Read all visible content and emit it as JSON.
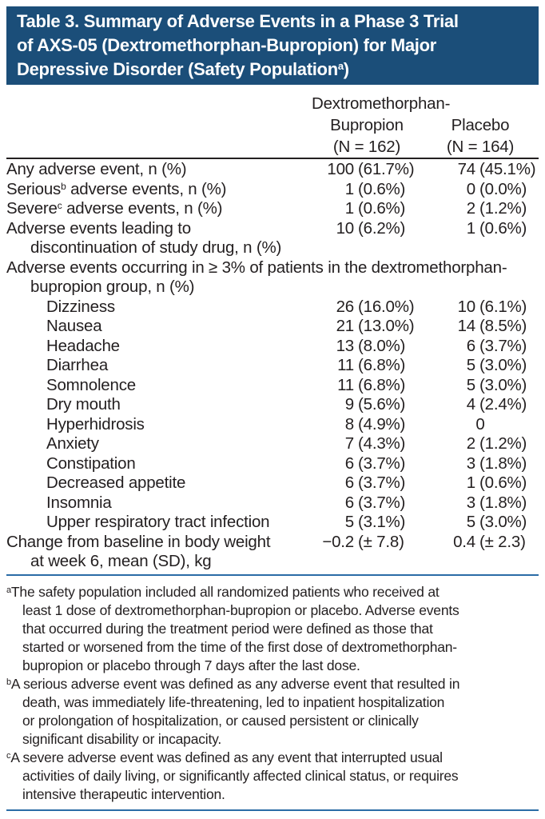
{
  "title": {
    "line1": "Table 3. Summary of Adverse Events in a Phase 3 Trial",
    "line2": "of AXS-05 (Dextromethorphan-Bupropion) for Major",
    "line3": "Depressive Disorder (Safety Population",
    "line3_sup": "a",
    "line3_close": ")"
  },
  "columns": {
    "col1": {
      "line1": "Dextromethorphan-",
      "line2": "Bupropion",
      "n": "(N = 162)"
    },
    "col2": {
      "line1": "Placebo",
      "n": "(N = 164)"
    }
  },
  "rows": [
    {
      "label": "Any adverse event, n (%)",
      "v1num": "100",
      "v1pct": "(61.7%)",
      "v2num": "74",
      "v2pct": "(45.1%)"
    },
    {
      "label_pre": "Serious",
      "label_sup": "b",
      "label_post": " adverse events, n (%)",
      "v1num": "1",
      "v1pct": "(0.6%)",
      "v2num": "0",
      "v2pct": "(0.0%)"
    },
    {
      "label_pre": "Severe",
      "label_sup": "c",
      "label_post": " adverse events, n (%)",
      "v1num": "1",
      "v1pct": "(0.6%)",
      "v2num": "2",
      "v2pct": "(1.2%)"
    },
    {
      "label": "Adverse events leading to",
      "label_cont": "discontinuation of study drug, n (%)",
      "v1num": "10",
      "v1pct": "(6.2%)",
      "v2num": "1",
      "v2pct": "(0.6%)"
    },
    {
      "label": "Adverse events occurring in ≥ 3% of patients in the dextromethorphan-",
      "label_cont": "bupropion group, n (%)"
    },
    {
      "label": "Dizziness",
      "v1num": "26",
      "v1pct": "(16.0%)",
      "v2num": "10",
      "v2pct": "(6.1%)"
    },
    {
      "label": "Nausea",
      "v1num": "21",
      "v1pct": "(13.0%)",
      "v2num": "14",
      "v2pct": "(8.5%)"
    },
    {
      "label": "Headache",
      "v1num": "13",
      "v1pct": "(8.0%)",
      "v2num": "6",
      "v2pct": "(3.7%)"
    },
    {
      "label": "Diarrhea",
      "v1num": "11",
      "v1pct": "(6.8%)",
      "v2num": "5",
      "v2pct": "(3.0%)"
    },
    {
      "label": "Somnolence",
      "v1num": "11",
      "v1pct": "(6.8%)",
      "v2num": "5",
      "v2pct": "(3.0%)"
    },
    {
      "label": "Dry mouth",
      "v1num": "9",
      "v1pct": "(5.6%)",
      "v2num": "4",
      "v2pct": "(2.4%)"
    },
    {
      "label": "Hyperhidrosis",
      "v1num": "8",
      "v1pct": "(4.9%)",
      "v2num": "0"
    },
    {
      "label": "Anxiety",
      "v1num": "7",
      "v1pct": "(4.3%)",
      "v2num": "2",
      "v2pct": "(1.2%)"
    },
    {
      "label": "Constipation",
      "v1num": "6",
      "v1pct": "(3.7%)",
      "v2num": "3",
      "v2pct": "(1.8%)"
    },
    {
      "label": "Decreased appetite",
      "v1num": "6",
      "v1pct": "(3.7%)",
      "v2num": "1",
      "v2pct": "(0.6%)"
    },
    {
      "label": "Insomnia",
      "v1num": "6",
      "v1pct": "(3.7%)",
      "v2num": "3",
      "v2pct": "(1.8%)"
    },
    {
      "label": "Upper respiratory tract infection",
      "v1num": "5",
      "v1pct": "(3.1%)",
      "v2num": "5",
      "v2pct": "(3.0%)"
    },
    {
      "label": "Change from baseline in body weight",
      "label_cont": "at week 6, mean (SD), kg",
      "v1num": "−0.2",
      "v1pct": "(± 7.8)",
      "v2num": "0.4",
      "v2pct": "(± 2.3)"
    }
  ],
  "footnotes": [
    {
      "sup": "a",
      "lines": [
        "The safety population included all randomized patients who received at",
        "least 1 dose of dextromethorphan-bupropion or placebo. Adverse events",
        "that occurred during the treatment period were defined as those that",
        "started or worsened from the time of the first dose of dextromethorphan-",
        "bupropion or placebo through 7 days after the last dose."
      ]
    },
    {
      "sup": "b",
      "lines": [
        "A serious adverse event was defined as any adverse event that resulted in",
        "death, was immediately life-threatening, led to inpatient hospitalization",
        "or prolongation of hospitalization, or caused persistent or clinically",
        "significant disability or incapacity."
      ]
    },
    {
      "sup": "c",
      "lines": [
        "A severe adverse event was defined as any event that interrupted usual",
        "activities of daily living, or significantly affected clinical status, or requires",
        "intensive therapeutic intervention."
      ]
    }
  ],
  "colors": {
    "title_bar_bg": "#1b4e79",
    "title_text": "#ffffff",
    "body_text": "#231f20",
    "header_rule": "#231f20",
    "divider_rule_blue": "#2b6ca6"
  }
}
